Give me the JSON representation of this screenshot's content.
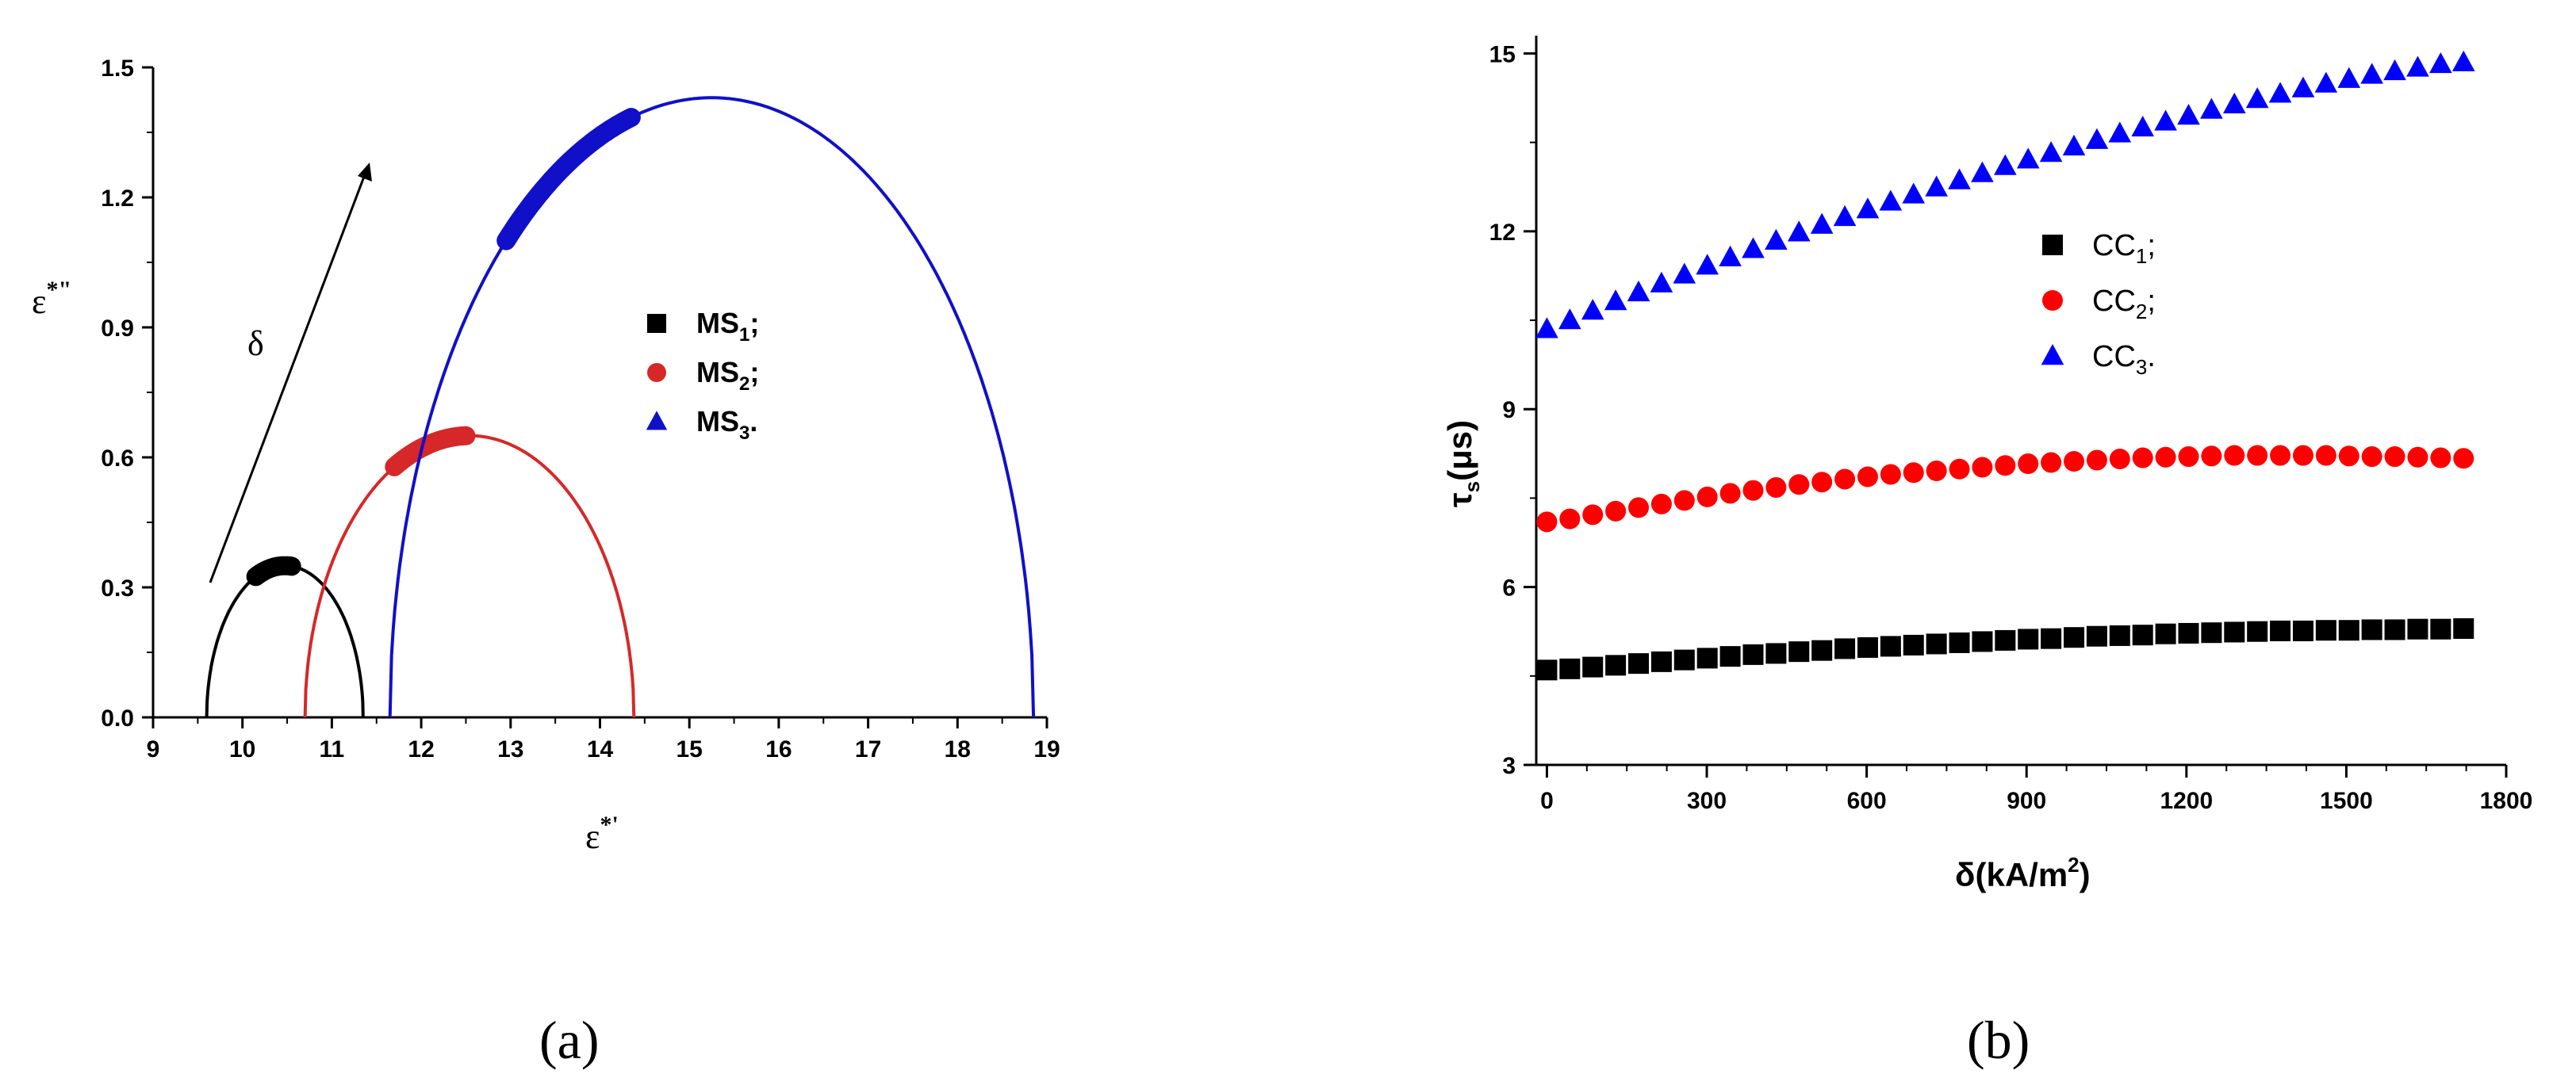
{
  "chart_data": [
    {
      "panel": "(a)",
      "type": "line",
      "xlabel_base": "ε",
      "xlabel_sup": "*'",
      "ylabel_base": "ε",
      "ylabel_sup": "*\"",
      "xlim": [
        9,
        19
      ],
      "ylim": [
        0,
        1.5
      ],
      "xticks": [
        9,
        10,
        11,
        12,
        13,
        14,
        15,
        16,
        17,
        18,
        19
      ],
      "yticks": [
        "0.0",
        "0.3",
        "0.6",
        "0.9",
        "1.2",
        "1.5"
      ],
      "annotation": "δ",
      "series": [
        {
          "name": "MS1;",
          "legend_base": "MS",
          "legend_sub": "1",
          "legend_suffix": ";",
          "color": "#000000",
          "marker": "square",
          "arc": {
            "x_start": 9.6,
            "x_end": 11.35,
            "peak": 0.35
          },
          "highlight": {
            "x_from": 10.15,
            "x_to": 10.55
          }
        },
        {
          "name": "MS2;",
          "legend_base": "MS",
          "legend_sub": "2",
          "legend_suffix": ";",
          "color": "#d62828",
          "marker": "circle",
          "arc": {
            "x_start": 10.7,
            "x_end": 14.38,
            "peak": 0.65
          },
          "highlight": {
            "x_from": 11.7,
            "x_to": 12.5
          }
        },
        {
          "name": "MS3.",
          "legend_base": "MS",
          "legend_sub": "3",
          "legend_suffix": ".",
          "color": "#1010c8",
          "marker": "triangle",
          "arc": {
            "x_start": 11.65,
            "x_end": 18.85,
            "peak": 1.43
          },
          "highlight": {
            "x_from": 12.95,
            "x_to": 14.35
          }
        }
      ]
    },
    {
      "panel": "(b)",
      "type": "scatter",
      "xlabel": "δ(kA/m",
      "xlabel_sup": "2",
      "xlabel_end": ")",
      "ylabel_base": "τ",
      "ylabel_sub": "s",
      "ylabel_unit": "(μs)",
      "xlim": [
        -20,
        1800
      ],
      "ylim": [
        3,
        15.3
      ],
      "xticks": [
        0,
        300,
        600,
        900,
        1200,
        1500,
        1800
      ],
      "yticks": [
        3,
        6,
        9,
        12,
        15
      ],
      "series": [
        {
          "name": "CC1;",
          "legend_base": "CC",
          "legend_sub": "1",
          "legend_suffix": ";",
          "color": "#000000",
          "marker": "square",
          "x": [
            0,
            43,
            86,
            129,
            172,
            215,
            258,
            301,
            344,
            387,
            430,
            473,
            516,
            559,
            602,
            645,
            688,
            731,
            774,
            817,
            860,
            903,
            946,
            989,
            1032,
            1075,
            1118,
            1161,
            1204,
            1247,
            1290,
            1333,
            1376,
            1419,
            1462,
            1505,
            1548,
            1591,
            1634,
            1677,
            1720
          ],
          "y": [
            4.6,
            4.62,
            4.65,
            4.68,
            4.71,
            4.74,
            4.77,
            4.8,
            4.83,
            4.86,
            4.88,
            4.91,
            4.93,
            4.96,
            4.98,
            5.0,
            5.02,
            5.04,
            5.06,
            5.08,
            5.1,
            5.12,
            5.13,
            5.15,
            5.17,
            5.18,
            5.19,
            5.21,
            5.22,
            5.23,
            5.24,
            5.25,
            5.26,
            5.26,
            5.27,
            5.27,
            5.28,
            5.28,
            5.29,
            5.29,
            5.3
          ]
        },
        {
          "name": "CC2;",
          "legend_base": "CC",
          "legend_sub": "2",
          "legend_suffix": ";",
          "color": "#ff0000",
          "marker": "circle",
          "x": [
            0,
            43,
            86,
            129,
            172,
            215,
            258,
            301,
            344,
            387,
            430,
            473,
            516,
            559,
            602,
            645,
            688,
            731,
            774,
            817,
            860,
            903,
            946,
            989,
            1032,
            1075,
            1118,
            1161,
            1204,
            1247,
            1290,
            1333,
            1376,
            1419,
            1462,
            1505,
            1548,
            1591,
            1634,
            1677,
            1720
          ],
          "y": [
            7.1,
            7.15,
            7.22,
            7.28,
            7.34,
            7.4,
            7.46,
            7.52,
            7.58,
            7.63,
            7.68,
            7.73,
            7.77,
            7.82,
            7.86,
            7.9,
            7.93,
            7.96,
            7.99,
            8.02,
            8.05,
            8.08,
            8.1,
            8.12,
            8.14,
            8.16,
            8.18,
            8.19,
            8.2,
            8.21,
            8.22,
            8.22,
            8.22,
            8.22,
            8.22,
            8.21,
            8.2,
            8.2,
            8.19,
            8.18,
            8.17
          ]
        },
        {
          "name": "CC3.",
          "legend_base": "CC",
          "legend_sub": "3",
          "legend_suffix": ".",
          "color": "#0000ff",
          "marker": "triangle",
          "x": [
            0,
            43,
            86,
            129,
            172,
            215,
            258,
            301,
            344,
            387,
            430,
            473,
            516,
            559,
            602,
            645,
            688,
            731,
            774,
            817,
            860,
            903,
            946,
            989,
            1032,
            1075,
            1118,
            1161,
            1204,
            1247,
            1290,
            1333,
            1376,
            1419,
            1462,
            1505,
            1548,
            1591,
            1634,
            1677,
            1720
          ],
          "y": [
            10.35,
            10.5,
            10.66,
            10.82,
            10.97,
            11.12,
            11.27,
            11.42,
            11.56,
            11.7,
            11.84,
            11.98,
            12.11,
            12.24,
            12.37,
            12.5,
            12.62,
            12.74,
            12.86,
            12.98,
            13.1,
            13.21,
            13.32,
            13.43,
            13.54,
            13.65,
            13.75,
            13.85,
            13.95,
            14.05,
            14.14,
            14.23,
            14.32,
            14.41,
            14.49,
            14.57,
            14.64,
            14.7,
            14.76,
            14.82,
            14.85
          ]
        }
      ]
    }
  ]
}
